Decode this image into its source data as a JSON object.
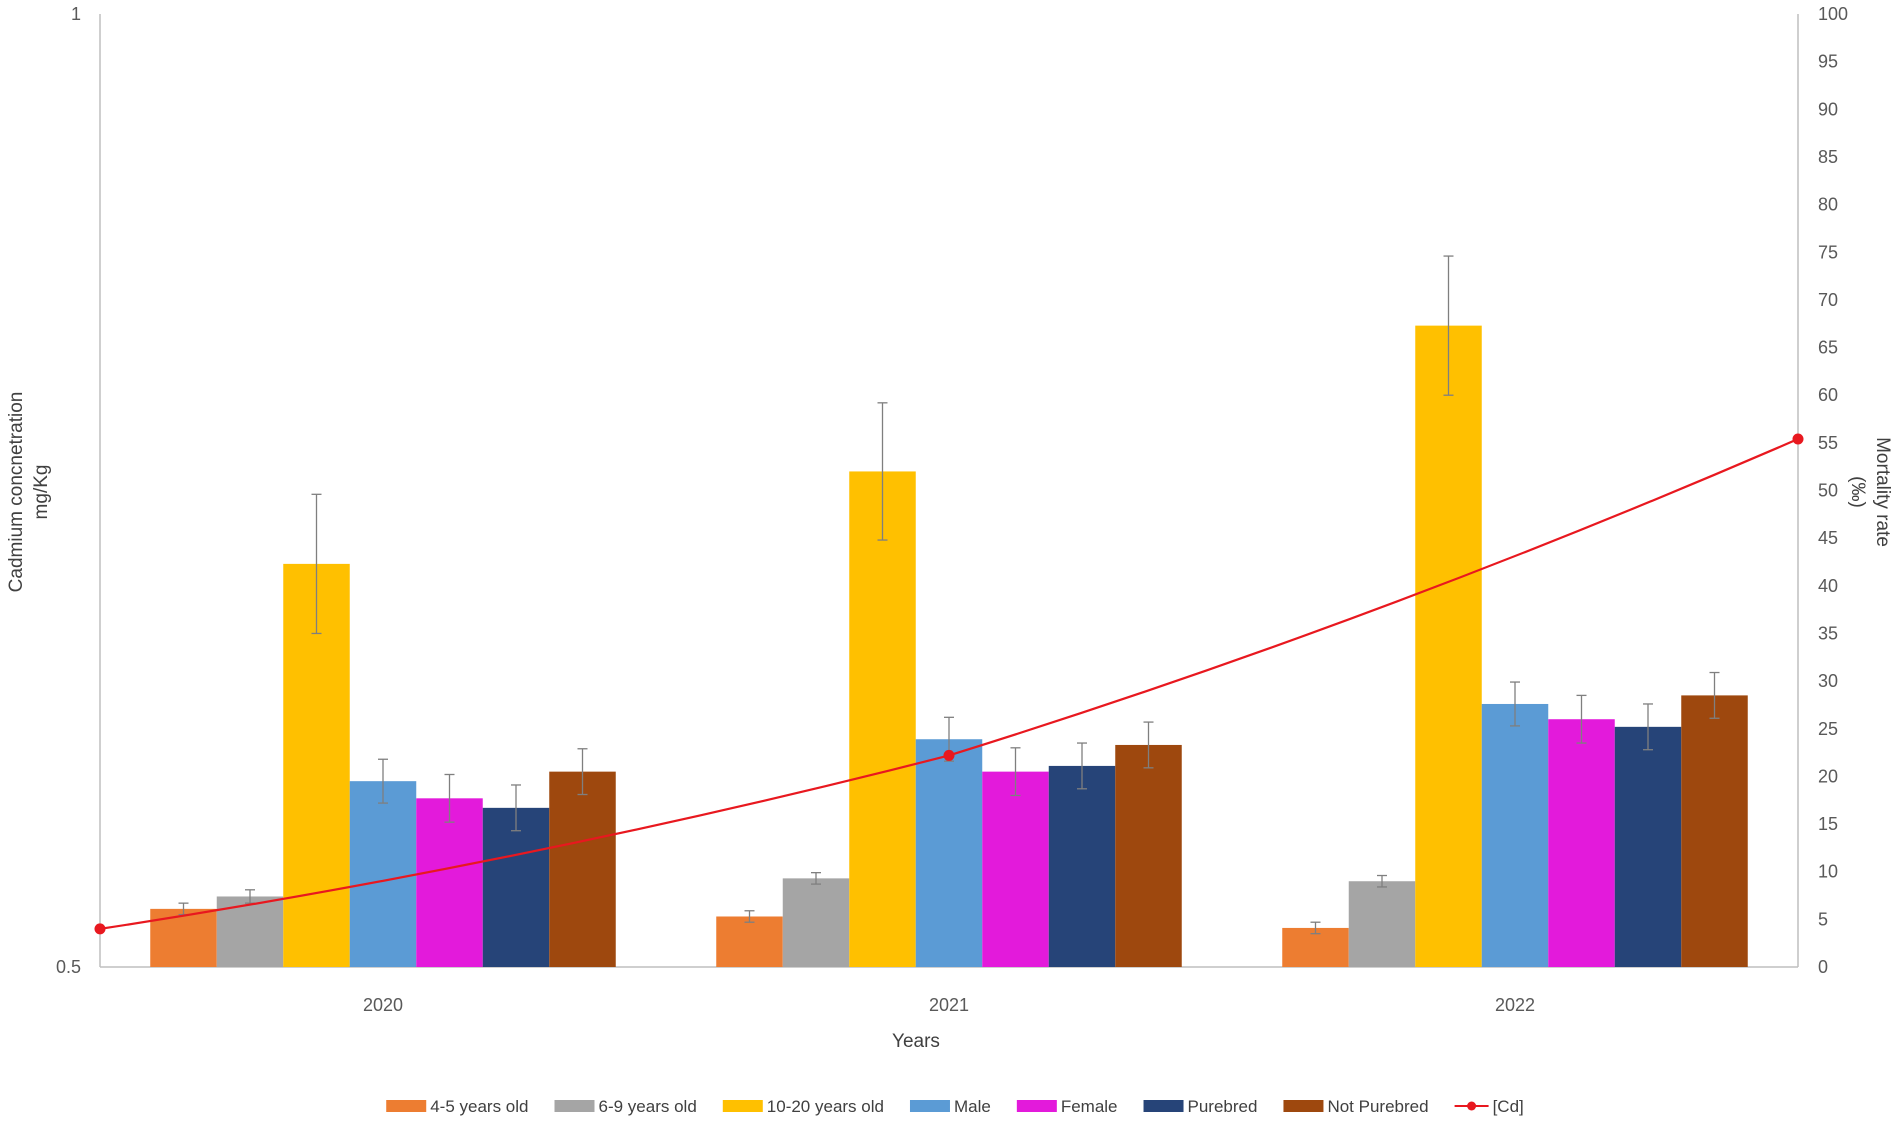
{
  "chart_data": {
    "type": "bar",
    "categories": [
      "2020",
      "2021",
      "2022"
    ],
    "xlabel": "Years",
    "ylabel_left": [
      "Cadmium concnetration",
      "mg/Kg"
    ],
    "ylabel_right": [
      "Mortality rate",
      "(‰)"
    ],
    "left_axis": {
      "ylim": [
        0.5,
        1
      ],
      "ticks": [
        "0.5",
        "1"
      ]
    },
    "right_axis": {
      "ylim": [
        0,
        100
      ],
      "step": 5,
      "ticks": [
        "0",
        "5",
        "10",
        "15",
        "20",
        "25",
        "30",
        "35",
        "40",
        "45",
        "50",
        "55",
        "60",
        "65",
        "70",
        "75",
        "80",
        "85",
        "90",
        "95",
        "100"
      ]
    },
    "grid": false,
    "legend_position": "bottom",
    "series": [
      {
        "name": "4-5 years old",
        "color": "#ED7D31",
        "values": [
          6.1,
          5.3,
          4.1
        ],
        "errors": [
          0.6,
          0.6,
          0.6
        ]
      },
      {
        "name": "6-9 years old",
        "color": "#A5A5A5",
        "values": [
          7.4,
          9.3,
          9.0
        ],
        "errors": [
          0.7,
          0.6,
          0.6
        ]
      },
      {
        "name": "10-20 years old",
        "color": "#FFC000",
        "values": [
          42.3,
          52.0,
          67.3
        ],
        "errors": [
          7.3,
          7.2,
          7.3
        ]
      },
      {
        "name": "Male",
        "color": "#5B9BD5",
        "values": [
          19.5,
          23.9,
          27.6
        ],
        "errors": [
          2.3,
          2.3,
          2.3
        ]
      },
      {
        "name": "Female",
        "color": "#E31ADB",
        "values": [
          17.7,
          20.5,
          26.0
        ],
        "errors": [
          2.5,
          2.5,
          2.5
        ]
      },
      {
        "name": "Purebred",
        "color": "#264478",
        "values": [
          16.7,
          21.1,
          25.2
        ],
        "errors": [
          2.4,
          2.4,
          2.4
        ]
      },
      {
        "name": "Not Purebred",
        "color": "#9E480E",
        "values": [
          20.5,
          23.3,
          28.5
        ],
        "errors": [
          2.4,
          2.4,
          2.4
        ]
      }
    ],
    "line_series": {
      "name": "[Cd]",
      "color": "#E8181F",
      "axis": "left",
      "values": [
        0.52,
        0.611,
        0.777
      ]
    }
  }
}
